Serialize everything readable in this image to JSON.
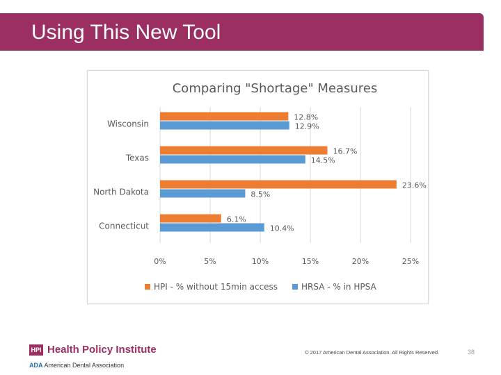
{
  "slide": {
    "title": "Using This New Tool",
    "page_number": "38",
    "copyright": "© 2017 American Dental Association. All Rights Reserved."
  },
  "footer": {
    "hpi_mark": "HPI",
    "hpi_name": "Health Policy Institute",
    "ada_mark": "ADA",
    "ada_name": "American Dental Association"
  },
  "colors": {
    "brand": "#9b2f62",
    "series_orange": "#ed7d31",
    "series_blue": "#5b9bd5"
  },
  "chart_data": {
    "type": "bar",
    "orientation": "horizontal",
    "title": "Comparing \"Shortage\" Measures",
    "categories": [
      "Wisconsin",
      "Texas",
      "North Dakota",
      "Connecticut"
    ],
    "series": [
      {
        "name": "HPI - % without 15min access",
        "color": "#ed7d31",
        "values": [
          12.8,
          16.7,
          23.6,
          6.1
        ],
        "labels": [
          "12.8%",
          "16.7%",
          "23.6%",
          "6.1%"
        ]
      },
      {
        "name": "HRSA - % in HPSA",
        "color": "#5b9bd5",
        "values": [
          12.9,
          14.5,
          8.5,
          10.4
        ],
        "labels": [
          "12.9%",
          "14.5%",
          "8.5%",
          "10.4%"
        ]
      }
    ],
    "xlim": [
      0,
      25
    ],
    "xticks": [
      0,
      5,
      10,
      15,
      20,
      25
    ],
    "xtick_labels": [
      "0%",
      "5%",
      "10%",
      "15%",
      "20%",
      "25%"
    ],
    "grid": true,
    "legend": "bottom"
  }
}
